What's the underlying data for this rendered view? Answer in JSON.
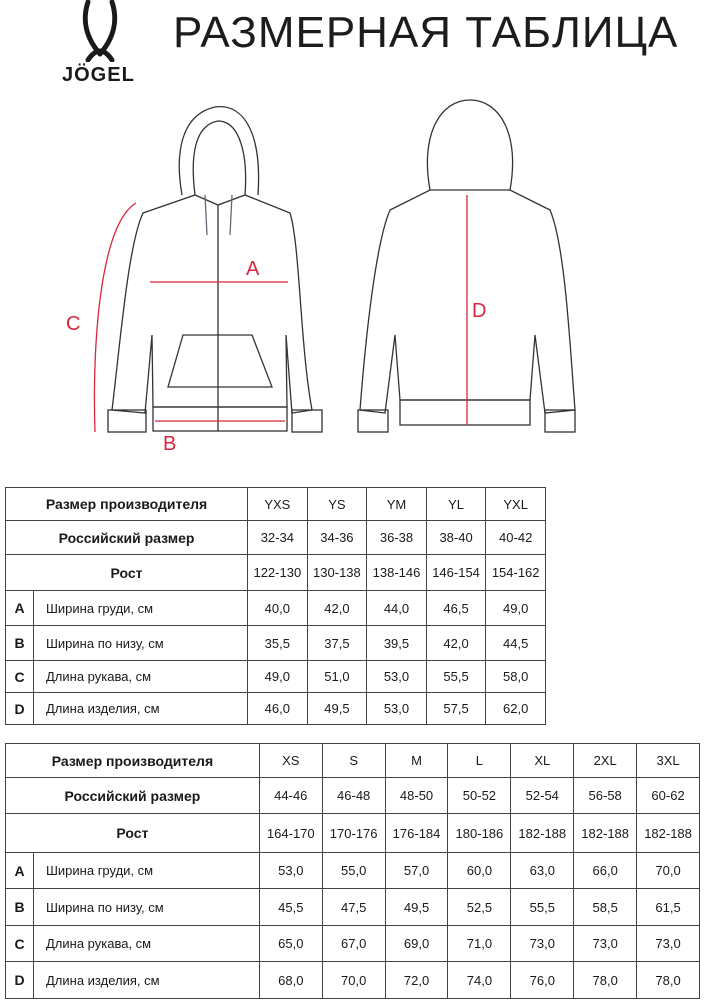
{
  "header": {
    "title": "РАЗМЕРНАЯ ТАБЛИЦА",
    "brand": "JÖGEL"
  },
  "diagram": {
    "labels": {
      "a": "A",
      "b": "B",
      "c": "C",
      "d": "D"
    },
    "accent_color": "#d9263c"
  },
  "tables": [
    {
      "header_label": "Размер производителя",
      "sizes": [
        "YXS",
        "YS",
        "YM",
        "YL",
        "YXL"
      ],
      "ru_label": "Российский размер",
      "ru": [
        "32-34",
        "34-36",
        "36-38",
        "38-40",
        "40-42"
      ],
      "height_label": "Рост",
      "heights": [
        "122-130",
        "130-138",
        "138-146",
        "146-154",
        "154-162"
      ],
      "rows": [
        {
          "letter": "A",
          "name": "Ширина груди, см",
          "values": [
            "40,0",
            "42,0",
            "44,0",
            "46,5",
            "49,0"
          ]
        },
        {
          "letter": "B",
          "name": "Ширина по низу, см",
          "values": [
            "35,5",
            "37,5",
            "39,5",
            "42,0",
            "44,5"
          ]
        },
        {
          "letter": "C",
          "name": "Длина рукава, см",
          "values": [
            "49,0",
            "51,0",
            "53,0",
            "55,5",
            "58,0"
          ]
        },
        {
          "letter": "D",
          "name": "Длина изделия, см",
          "values": [
            "46,0",
            "49,5",
            "53,0",
            "57,5",
            "62,0"
          ]
        }
      ]
    },
    {
      "header_label": "Размер производителя",
      "sizes": [
        "XS",
        "S",
        "M",
        "L",
        "XL",
        "2XL",
        "3XL"
      ],
      "ru_label": "Российский размер",
      "ru": [
        "44-46",
        "46-48",
        "48-50",
        "50-52",
        "52-54",
        "56-58",
        "60-62"
      ],
      "height_label": "Рост",
      "heights": [
        "164-170",
        "170-176",
        "176-184",
        "180-186",
        "182-188",
        "182-188",
        "182-188"
      ],
      "rows": [
        {
          "letter": "A",
          "name": "Ширина груди, см",
          "values": [
            "53,0",
            "55,0",
            "57,0",
            "60,0",
            "63,0",
            "66,0",
            "70,0"
          ]
        },
        {
          "letter": "B",
          "name": "Ширина по низу, см",
          "values": [
            "45,5",
            "47,5",
            "49,5",
            "52,5",
            "55,5",
            "58,5",
            "61,5"
          ]
        },
        {
          "letter": "C",
          "name": "Длина рукава, см",
          "values": [
            "65,0",
            "67,0",
            "69,0",
            "71,0",
            "73,0",
            "73,0",
            "73,0"
          ]
        },
        {
          "letter": "D",
          "name": "Длина изделия, см",
          "values": [
            "68,0",
            "70,0",
            "72,0",
            "74,0",
            "76,0",
            "78,0",
            "78,0"
          ]
        }
      ]
    }
  ]
}
